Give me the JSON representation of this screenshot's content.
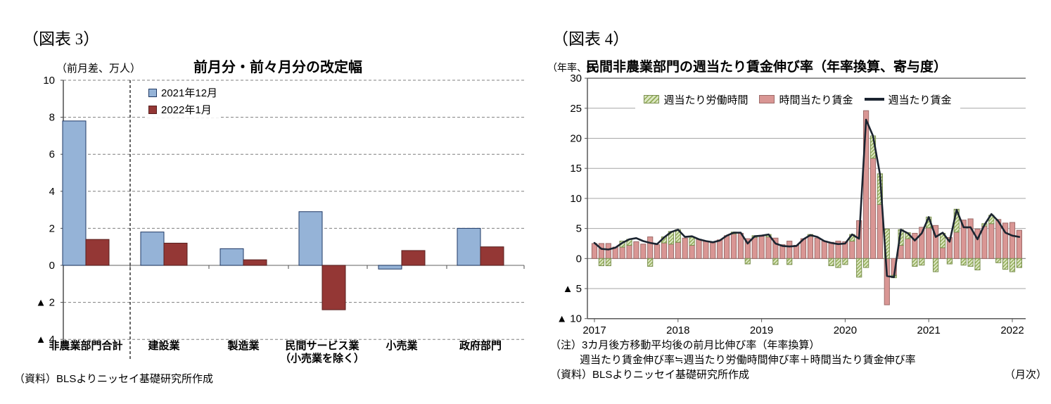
{
  "figure3": {
    "label": "（図表 3）",
    "unit": "（前月差、万人）",
    "title": "前月分・前々月分の改定幅",
    "legend": [
      "2021年12月",
      "2022年1月"
    ],
    "source": "（資料）BLSよりニッセイ基礎研究所作成"
  },
  "figure4": {
    "label": "（図表 4）",
    "unit": "（年率、%）",
    "title": "民間非農業部門の週当たり賃金伸び率（年率換算、寄与度）",
    "legend": [
      "週当たり労働時間",
      "時間当たり賃金",
      "週当たり賃金"
    ],
    "notes": [
      "（注）3カ月後方移動平均後の前月比伸び率（年率換算）",
      "週当たり賃金伸び率≒週当たり労働時間伸び率＋時間当たり賃金伸び率"
    ],
    "source": "（資料）BLSよりニッセイ基礎研究所作成",
    "frequency_note": "（月次）"
  },
  "chart_data": [
    {
      "type": "bar",
      "title": "前月分・前々月分の改定幅",
      "unit": "（前月差、万人）",
      "categories": [
        "非農業部門合計",
        "建設業",
        "製造業",
        "民間サービス業\n（小売業を除く）",
        "小売業",
        "政府部門"
      ],
      "series": [
        {
          "name": "2021年12月",
          "color": "#95B3D7",
          "border": "#1F3864",
          "values": [
            7.8,
            1.8,
            0.9,
            2.9,
            -0.2,
            2.0
          ]
        },
        {
          "name": "2022年1月",
          "color": "#943735",
          "border": "#571F1E",
          "values": [
            1.4,
            1.2,
            0.3,
            -2.4,
            0.8,
            1.0
          ]
        }
      ],
      "ylim": [
        -4,
        10
      ],
      "ytick_step": 2,
      "ytick_labels": [
        "10",
        "8",
        "6",
        "4",
        "2",
        "0",
        "▲ 2",
        "▲ 4"
      ],
      "grid": "dashed-horizontal",
      "separator_after_category": 0,
      "legend_position": "top-left-inside",
      "source": "（資料）BLSよりニッセイ基礎研究所作成"
    },
    {
      "type": "stacked-bar+line",
      "title": "民間非農業部門の週当たり賃金伸び率（年率換算、寄与度）",
      "unit": "（年率、%）",
      "x_start": "2017-01",
      "x_end": "2022-02",
      "months": 62,
      "year_labels": [
        "2017",
        "2018",
        "2019",
        "2020",
        "2021",
        "2022"
      ],
      "ylim": [
        -10,
        30
      ],
      "ytick_step": 5,
      "ytick_labels": [
        "30",
        "25",
        "20",
        "15",
        "10",
        "5",
        "0",
        "▲ 5",
        "▲ 10"
      ],
      "grid": "solid-horizontal",
      "legend_position": "top-center-inside",
      "x_axis_note": "（月次）",
      "series": [
        {
          "name": "週当たり労働時間",
          "type": "bar",
          "color": "#DCE6C4",
          "hatch": "#90AC54",
          "border": "#7A8F4F",
          "values": [
            0,
            -1.2,
            -1.2,
            0,
            1.0,
            1.0,
            0,
            0,
            -1.3,
            0,
            1.0,
            2.1,
            2.1,
            0,
            1.4,
            0,
            0,
            0,
            0,
            0,
            0.3,
            0,
            -0.9,
            0.3,
            0,
            0.4,
            -1.0,
            0,
            -1.0,
            0,
            0,
            0.3,
            0,
            0,
            -1.2,
            -1.5,
            -1.0,
            1.1,
            -3.1,
            -1.5,
            3.7,
            5.1,
            4.9,
            -0.4,
            2.6,
            1.0,
            -1.3,
            -1.1,
            1.8,
            -2.2,
            2.4,
            -0.9,
            3.8,
            -1.1,
            -1.3,
            -1.9,
            0.4,
            1.4,
            -0.7,
            -1.8,
            -2.2,
            -1.5
          ]
        },
        {
          "name": "時間当たり賃金",
          "type": "bar",
          "color": "#D99694",
          "border": "#9D6B69",
          "values": [
            2.5,
            2.5,
            2.5,
            1.9,
            1.9,
            2.2,
            2.8,
            2.4,
            3.6,
            2.3,
            2.6,
            2.4,
            2.7,
            3.4,
            2.2,
            3.2,
            2.9,
            2.6,
            3.1,
            3.8,
            4.1,
            4.2,
            3.3,
            3.5,
            3.7,
            3.6,
            3.4,
            2.3,
            2.9,
            2.2,
            3.3,
            3.7,
            3.4,
            2.9,
            2.7,
            2.9,
            2.8,
            2.9,
            6.3,
            24.6,
            16.7,
            9.0,
            -7.7,
            -2.8,
            2.2,
            3.3,
            4.2,
            5.2,
            5.1,
            5.5,
            1.8,
            3.5,
            4.4,
            6.4,
            6.6,
            4.9,
            5.4,
            5.8,
            6.5,
            5.9,
            6.0,
            4.7
          ]
        },
        {
          "name": "週当たり賃金",
          "type": "line",
          "color": "#1B2430",
          "values": [
            2.6,
            1.6,
            1.5,
            1.8,
            2.6,
            3.2,
            3.4,
            2.9,
            2.6,
            2.4,
            3.5,
            4.4,
            4.8,
            3.6,
            3.7,
            3.2,
            2.9,
            2.7,
            3.0,
            3.8,
            4.3,
            4.3,
            2.5,
            3.7,
            3.8,
            4.0,
            2.5,
            2.1,
            2.0,
            2.1,
            3.2,
            3.9,
            3.6,
            2.9,
            2.6,
            2.4,
            2.5,
            4.0,
            3.3,
            23.1,
            20.4,
            14.0,
            -2.9,
            -3.1,
            4.8,
            4.2,
            3.0,
            4.2,
            6.9,
            3.6,
            4.3,
            2.8,
            8.1,
            5.2,
            5.2,
            3.2,
            5.6,
            7.4,
            6.2,
            4.3,
            3.8,
            3.6
          ]
        }
      ],
      "notes": [
        "（注）3カ月後方移動平均後の前月比伸び率（年率換算）",
        "週当たり賃金伸び率≒週当たり労働時間伸び率＋時間当たり賃金伸び率"
      ],
      "source": "（資料）BLSよりニッセイ基礎研究所作成"
    }
  ]
}
